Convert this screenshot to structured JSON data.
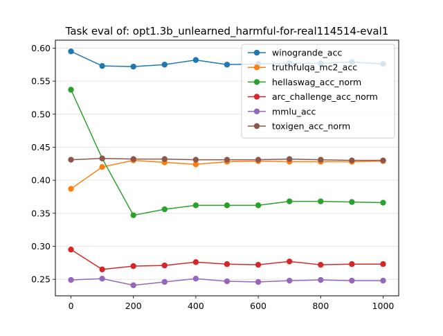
{
  "chart_data": {
    "type": "line",
    "title": "Task eval of: opt1.3b_unlearned_harmful-for-real114514-eval1",
    "xlabel": "",
    "ylabel": "",
    "x": [
      0,
      100,
      200,
      300,
      400,
      500,
      600,
      700,
      800,
      900,
      1000
    ],
    "xlim": [
      -50,
      1050
    ],
    "ylim": [
      0.225,
      0.612
    ],
    "xticks": [
      0,
      200,
      400,
      600,
      800,
      1000
    ],
    "yticks": [
      0.25,
      0.3,
      0.35,
      0.4,
      0.45,
      0.5,
      0.55,
      0.6
    ],
    "grid": "horizontal",
    "legend_position": "top-right",
    "series": [
      {
        "name": "winogrande_acc",
        "color": "#1f77b4",
        "values": [
          0.595,
          0.573,
          0.572,
          0.575,
          0.582,
          0.575,
          0.576,
          0.577,
          0.577,
          0.579,
          0.576
        ]
      },
      {
        "name": "truthfulqa_mc2_acc",
        "color": "#ff7f0e",
        "values": [
          0.387,
          0.42,
          0.43,
          0.427,
          0.424,
          0.428,
          0.429,
          0.428,
          0.428,
          0.428,
          0.429
        ]
      },
      {
        "name": "hellaswag_acc_norm",
        "color": "#2ca02c",
        "values": [
          0.537,
          0.433,
          0.347,
          0.356,
          0.362,
          0.362,
          0.362,
          0.368,
          0.368,
          0.367,
          0.366
        ]
      },
      {
        "name": "arc_challenge_acc_norm",
        "color": "#d62728",
        "values": [
          0.295,
          0.265,
          0.27,
          0.271,
          0.276,
          0.273,
          0.272,
          0.277,
          0.272,
          0.273,
          0.273
        ]
      },
      {
        "name": "mmlu_acc",
        "color": "#9467bd",
        "values": [
          0.249,
          0.251,
          0.241,
          0.246,
          0.251,
          0.247,
          0.246,
          0.248,
          0.249,
          0.248,
          0.248
        ]
      },
      {
        "name": "toxigen_acc_norm",
        "color": "#8c564b",
        "values": [
          0.431,
          0.433,
          0.432,
          0.432,
          0.431,
          0.431,
          0.431,
          0.432,
          0.431,
          0.43,
          0.43
        ]
      }
    ]
  }
}
